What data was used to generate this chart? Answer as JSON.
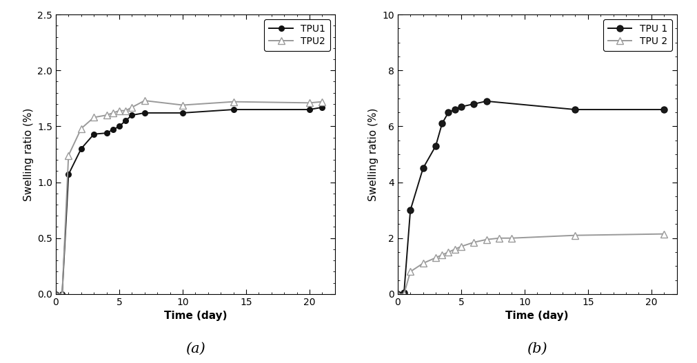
{
  "plot_a": {
    "tpu1_x": [
      0,
      0.5,
      1,
      2,
      3,
      4,
      4.5,
      5,
      5.5,
      6,
      7,
      10,
      14,
      20,
      21
    ],
    "tpu1_y": [
      0.0,
      0.0,
      1.07,
      1.3,
      1.43,
      1.44,
      1.47,
      1.5,
      1.55,
      1.6,
      1.62,
      1.62,
      1.65,
      1.65,
      1.67
    ],
    "tpu2_x": [
      0,
      0.5,
      1,
      2,
      3,
      4,
      4.5,
      5,
      5.5,
      6,
      7,
      10,
      14,
      20,
      21
    ],
    "tpu2_y": [
      0.0,
      0.0,
      1.24,
      1.48,
      1.58,
      1.6,
      1.62,
      1.64,
      1.64,
      1.67,
      1.73,
      1.69,
      1.72,
      1.71,
      1.72
    ],
    "xlabel": "Time (day)",
    "ylabel": "Swelling ratio (%)",
    "xlim": [
      0,
      22
    ],
    "ylim": [
      0.0,
      2.5
    ],
    "yticks": [
      0.0,
      0.5,
      1.0,
      1.5,
      2.0,
      2.5
    ],
    "xticks": [
      0,
      5,
      10,
      15,
      20
    ],
    "legend_labels": [
      "TPU1",
      "TPU2"
    ],
    "label": "(a)"
  },
  "plot_b": {
    "tpu1_x": [
      0,
      0.5,
      1,
      2,
      3,
      3.5,
      4,
      4.5,
      5,
      6,
      7,
      14,
      21
    ],
    "tpu1_y": [
      0.0,
      0.05,
      3.0,
      4.5,
      5.3,
      6.1,
      6.5,
      6.6,
      6.7,
      6.8,
      6.9,
      6.6,
      6.6
    ],
    "tpu2_x": [
      0,
      0.5,
      1,
      2,
      3,
      3.5,
      4,
      4.5,
      5,
      6,
      7,
      8,
      9,
      14,
      21
    ],
    "tpu2_y": [
      0.0,
      0.0,
      0.8,
      1.1,
      1.3,
      1.4,
      1.5,
      1.6,
      1.7,
      1.85,
      1.95,
      2.0,
      2.0,
      2.1,
      2.15
    ],
    "xlabel": "Time (day)",
    "ylabel": "Swelling ratio (%)",
    "xlim": [
      0,
      22
    ],
    "ylim": [
      0,
      10
    ],
    "yticks": [
      0,
      2,
      4,
      6,
      8,
      10
    ],
    "xticks": [
      0,
      5,
      10,
      15,
      20
    ],
    "legend_labels": [
      "TPU 1",
      "TPU 2"
    ],
    "label": "(b)"
  },
  "tpu1_color": "#111111",
  "tpu2_color": "#999999",
  "bg_color": "#ffffff",
  "label_fontsize": 11,
  "tick_fontsize": 10,
  "legend_fontsize": 10,
  "sublabel_fontsize": 15
}
